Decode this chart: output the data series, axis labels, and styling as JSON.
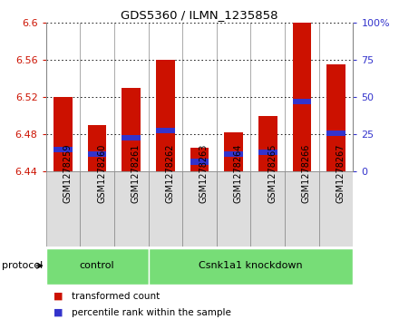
{
  "title": "GDS5360 / ILMN_1235858",
  "samples": [
    "GSM1278259",
    "GSM1278260",
    "GSM1278261",
    "GSM1278262",
    "GSM1278263",
    "GSM1278264",
    "GSM1278265",
    "GSM1278266",
    "GSM1278267"
  ],
  "bar_tops": [
    6.52,
    6.49,
    6.53,
    6.56,
    6.465,
    6.482,
    6.5,
    6.6,
    6.555
  ],
  "bar_base": 6.44,
  "blue_marks": [
    6.463,
    6.458,
    6.476,
    6.484,
    6.45,
    6.458,
    6.46,
    6.515,
    6.481
  ],
  "ylim_left": [
    6.44,
    6.6
  ],
  "ylim_right": [
    0,
    100
  ],
  "yticks_left": [
    6.44,
    6.48,
    6.52,
    6.56,
    6.6
  ],
  "yticks_right": [
    0,
    25,
    50,
    75,
    100
  ],
  "ytick_labels_left": [
    "6.44",
    "6.48",
    "6.52",
    "6.56",
    "6.6"
  ],
  "ytick_labels_right": [
    "0",
    "25",
    "50",
    "75",
    "100%"
  ],
  "bar_color": "#CC1100",
  "blue_color": "#3333CC",
  "protocol_groups": [
    {
      "label": "control",
      "start": 0,
      "end": 3
    },
    {
      "label": "Csnk1a1 knockdown",
      "start": 3,
      "end": 9
    }
  ],
  "protocol_bg_color": "#77DD77",
  "protocol_label": "protocol",
  "legend_items": [
    {
      "label": "transformed count",
      "color": "#CC1100"
    },
    {
      "label": "percentile rank within the sample",
      "color": "#3333CC"
    }
  ],
  "tick_color_left": "#CC1100",
  "tick_color_right": "#3333CC",
  "bar_width": 0.55,
  "figure_bg": "#FFFFFF",
  "xtick_bg": "#DDDDDD",
  "spine_color": "#888888"
}
